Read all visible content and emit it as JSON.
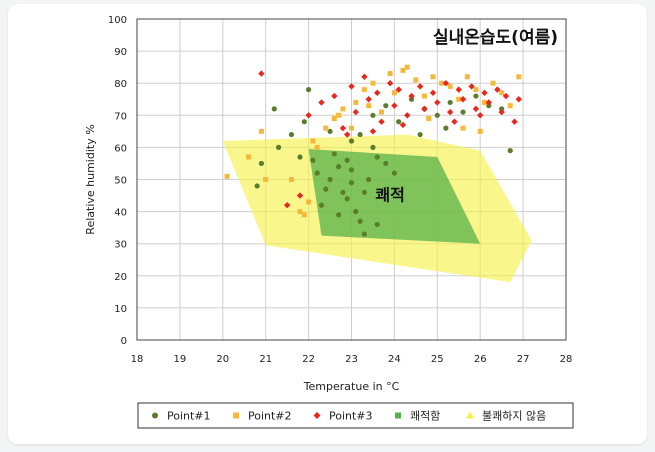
{
  "chart_data": {
    "type": "scatter",
    "title": "실내온습도(여름)",
    "xlabel": "Temperatue in °C",
    "ylabel": "Relative humidity %",
    "xlim": [
      18,
      28
    ],
    "ylim": [
      0,
      100
    ],
    "xticks": [
      18,
      19,
      20,
      21,
      22,
      23,
      24,
      25,
      26,
      27,
      28
    ],
    "yticks": [
      0,
      10,
      20,
      30,
      40,
      50,
      60,
      70,
      80,
      90,
      100
    ],
    "grid": true,
    "legend_position": "bottom",
    "colors": {
      "point1": "#5a7d2b",
      "point2": "#f6b83a",
      "point3": "#e8281e",
      "comfort": "#55b24a",
      "discomfort": "#f5f046"
    },
    "series": [
      {
        "name": "Point#1",
        "marker": "circle",
        "points": [
          [
            20.8,
            48
          ],
          [
            20.9,
            55
          ],
          [
            21.2,
            72
          ],
          [
            21.3,
            60
          ],
          [
            21.6,
            64
          ],
          [
            21.8,
            57
          ],
          [
            21.9,
            68
          ],
          [
            22.0,
            78
          ],
          [
            22.1,
            56
          ],
          [
            22.2,
            52
          ],
          [
            22.3,
            42
          ],
          [
            22.4,
            47
          ],
          [
            22.5,
            50
          ],
          [
            22.6,
            58
          ],
          [
            22.7,
            54
          ],
          [
            22.8,
            46
          ],
          [
            22.9,
            56
          ],
          [
            23.0,
            49
          ],
          [
            23.0,
            53
          ],
          [
            23.1,
            40
          ],
          [
            23.2,
            37
          ],
          [
            23.3,
            33
          ],
          [
            23.4,
            50
          ],
          [
            23.5,
            60
          ],
          [
            23.6,
            57
          ],
          [
            23.8,
            55
          ],
          [
            24.0,
            52
          ],
          [
            23.0,
            62
          ],
          [
            23.2,
            64
          ],
          [
            23.5,
            70
          ],
          [
            23.8,
            73
          ],
          [
            24.1,
            68
          ],
          [
            24.4,
            75
          ],
          [
            24.7,
            72
          ],
          [
            25.0,
            70
          ],
          [
            25.3,
            74
          ],
          [
            25.6,
            71
          ],
          [
            25.9,
            76
          ],
          [
            26.2,
            73
          ],
          [
            26.5,
            72
          ],
          [
            26.7,
            59
          ],
          [
            24.6,
            64
          ],
          [
            25.2,
            66
          ],
          [
            22.5,
            65
          ],
          [
            22.9,
            44
          ],
          [
            23.6,
            36
          ],
          [
            23.3,
            46
          ],
          [
            22.7,
            39
          ]
        ]
      },
      {
        "name": "Point#2",
        "marker": "square",
        "points": [
          [
            20.1,
            51
          ],
          [
            20.6,
            57
          ],
          [
            20.9,
            65
          ],
          [
            21.0,
            50
          ],
          [
            21.6,
            50
          ],
          [
            21.8,
            40
          ],
          [
            21.9,
            39
          ],
          [
            22.0,
            43
          ],
          [
            22.1,
            62
          ],
          [
            22.2,
            60
          ],
          [
            22.4,
            66
          ],
          [
            22.6,
            69
          ],
          [
            22.8,
            72
          ],
          [
            23.0,
            66
          ],
          [
            23.1,
            74
          ],
          [
            23.3,
            78
          ],
          [
            23.5,
            80
          ],
          [
            23.7,
            71
          ],
          [
            23.9,
            83
          ],
          [
            24.0,
            77
          ],
          [
            24.2,
            84
          ],
          [
            24.3,
            85
          ],
          [
            24.5,
            81
          ],
          [
            24.7,
            76
          ],
          [
            24.9,
            82
          ],
          [
            25.1,
            80
          ],
          [
            25.3,
            79
          ],
          [
            25.5,
            75
          ],
          [
            25.7,
            82
          ],
          [
            25.9,
            78
          ],
          [
            26.1,
            74
          ],
          [
            26.3,
            80
          ],
          [
            26.5,
            77
          ],
          [
            26.7,
            73
          ],
          [
            26.9,
            82
          ],
          [
            22.7,
            70
          ],
          [
            23.4,
            73
          ],
          [
            24.8,
            69
          ],
          [
            25.6,
            66
          ],
          [
            26.0,
            65
          ]
        ]
      },
      {
        "name": "Point#3",
        "marker": "diamond",
        "points": [
          [
            20.9,
            83
          ],
          [
            21.5,
            42
          ],
          [
            21.8,
            45
          ],
          [
            22.0,
            70
          ],
          [
            22.3,
            74
          ],
          [
            22.6,
            76
          ],
          [
            22.8,
            66
          ],
          [
            23.0,
            79
          ],
          [
            23.1,
            71
          ],
          [
            23.3,
            82
          ],
          [
            23.4,
            75
          ],
          [
            23.6,
            77
          ],
          [
            23.7,
            68
          ],
          [
            23.9,
            80
          ],
          [
            24.0,
            73
          ],
          [
            24.1,
            78
          ],
          [
            24.3,
            70
          ],
          [
            24.4,
            76
          ],
          [
            24.6,
            79
          ],
          [
            24.7,
            72
          ],
          [
            24.9,
            77
          ],
          [
            25.0,
            74
          ],
          [
            25.2,
            80
          ],
          [
            25.3,
            71
          ],
          [
            25.5,
            78
          ],
          [
            25.6,
            75
          ],
          [
            25.8,
            79
          ],
          [
            25.9,
            72
          ],
          [
            26.1,
            77
          ],
          [
            26.2,
            74
          ],
          [
            26.4,
            78
          ],
          [
            26.5,
            71
          ],
          [
            26.6,
            76
          ],
          [
            26.8,
            68
          ],
          [
            26.9,
            75
          ],
          [
            23.5,
            65
          ],
          [
            24.2,
            67
          ],
          [
            25.4,
            68
          ],
          [
            26.0,
            70
          ],
          [
            22.9,
            64
          ]
        ]
      }
    ],
    "regions": [
      {
        "name": "쾌적함",
        "label": "쾌적",
        "polygon": [
          [
            22.0,
            59.5
          ],
          [
            25.0,
            57
          ],
          [
            26.0,
            30
          ],
          [
            22.3,
            32.5
          ]
        ]
      },
      {
        "name": "불쾌하지 않음",
        "polygon": [
          [
            20.0,
            62
          ],
          [
            24.3,
            64
          ],
          [
            26.0,
            59
          ],
          [
            27.2,
            31
          ],
          [
            26.7,
            18
          ],
          [
            21.0,
            29.5
          ]
        ]
      }
    ]
  }
}
